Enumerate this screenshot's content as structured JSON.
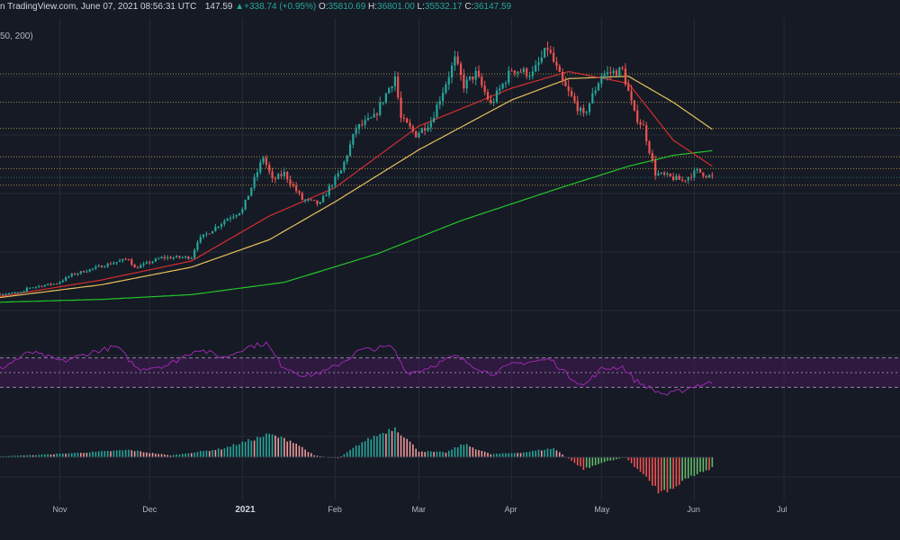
{
  "header": {
    "source": "n TradingView.com, June 07, 2021 08:56:31 UTC",
    "close_snip": "147.59",
    "change": "+338.74 (+0.95%)",
    "open_label": "O:",
    "open": "35810.69",
    "high_label": "H:",
    "high": "36801.00",
    "low_label": "L:",
    "low": "35532.17",
    "close_label": "C:",
    "close": "36147.59",
    "ma_params": "50, 200)"
  },
  "colors": {
    "background": "#161a25",
    "grid": "#262b38",
    "up_candle": "#26a69a",
    "down_candle": "#ef5350",
    "ma_fast": "#d32f2f",
    "ma_50": "#e6c15a",
    "ma_200": "#22c62a",
    "rsi_line": "#9c27b0",
    "rsi_band": "#4a1a5e",
    "level_line": "#c8b04a"
  },
  "chart_data": {
    "type": "candlestick",
    "months": [
      "Nov",
      "Dec",
      "2021",
      "Feb",
      "Mar",
      "Apr",
      "May",
      "Jun",
      "Jul"
    ],
    "price_ylim": [
      9000,
      66000
    ],
    "horizontal_levels": [
      58000,
      52000,
      46500,
      40500,
      38000,
      34500
    ],
    "price_anchors": [
      [
        "2020-10-12",
        11500
      ],
      [
        "2020-10-20",
        11900
      ],
      [
        "2020-10-21",
        12800
      ],
      [
        "2020-10-31",
        13800
      ],
      [
        "2020-11-05",
        15600
      ],
      [
        "2020-11-17",
        17800
      ],
      [
        "2020-11-24",
        19000
      ],
      [
        "2020-11-26",
        17000
      ],
      [
        "2020-12-05",
        19200
      ],
      [
        "2020-12-15",
        19300
      ],
      [
        "2020-12-17",
        22800
      ],
      [
        "2020-12-27",
        27500
      ],
      [
        "2021-01-01",
        29300
      ],
      [
        "2021-01-03",
        32500
      ],
      [
        "2021-01-08",
        40500
      ],
      [
        "2021-01-11",
        35500
      ],
      [
        "2021-01-15",
        37000
      ],
      [
        "2021-01-21",
        31500
      ],
      [
        "2021-01-27",
        30500
      ],
      [
        "2021-01-30",
        34000
      ],
      [
        "2021-02-03",
        37500
      ],
      [
        "2021-02-08",
        46500
      ],
      [
        "2021-02-14",
        48800
      ],
      [
        "2021-02-21",
        57500
      ],
      [
        "2021-02-23",
        48500
      ],
      [
        "2021-02-28",
        45200
      ],
      [
        "2021-03-05",
        48000
      ],
      [
        "2021-03-13",
        61000
      ],
      [
        "2021-03-16",
        55600
      ],
      [
        "2021-03-20",
        58000
      ],
      [
        "2021-03-25",
        51500
      ],
      [
        "2021-04-01",
        59000
      ],
      [
        "2021-04-08",
        58000
      ],
      [
        "2021-04-13",
        63500
      ],
      [
        "2021-04-18",
        56000
      ],
      [
        "2021-04-25",
        49000
      ],
      [
        "2021-05-01",
        57800
      ],
      [
        "2021-05-08",
        58800
      ],
      [
        "2021-05-12",
        49500
      ],
      [
        "2021-05-15",
        46800
      ],
      [
        "2021-05-19",
        37000
      ],
      [
        "2021-05-22",
        36500
      ],
      [
        "2021-05-28",
        35500
      ],
      [
        "2021-06-02",
        37500
      ],
      [
        "2021-06-07",
        36147.59
      ]
    ],
    "ma_fast_anchors": [
      [
        "2020-10-12",
        11000
      ],
      [
        "2020-11-15",
        14500
      ],
      [
        "2020-12-15",
        18500
      ],
      [
        "2021-01-10",
        28000
      ],
      [
        "2021-02-01",
        34000
      ],
      [
        "2021-03-01",
        47000
      ],
      [
        "2021-04-01",
        55000
      ],
      [
        "2021-04-20",
        58500
      ],
      [
        "2021-05-10",
        56000
      ],
      [
        "2021-05-25",
        44000
      ],
      [
        "2021-06-07",
        38500
      ]
    ],
    "ma_50_anchors": [
      [
        "2020-10-12",
        10800
      ],
      [
        "2020-11-15",
        13500
      ],
      [
        "2020-12-15",
        17200
      ],
      [
        "2021-01-10",
        23000
      ],
      [
        "2021-02-01",
        31000
      ],
      [
        "2021-03-01",
        42000
      ],
      [
        "2021-04-01",
        52500
      ],
      [
        "2021-04-20",
        57000
      ],
      [
        "2021-05-10",
        57500
      ],
      [
        "2021-05-25",
        52000
      ],
      [
        "2021-06-07",
        46300
      ]
    ],
    "ma_200_anchors": [
      [
        "2020-10-12",
        9800
      ],
      [
        "2020-11-15",
        10400
      ],
      [
        "2020-12-15",
        11400
      ],
      [
        "2021-01-15",
        14000
      ],
      [
        "2021-02-15",
        20000
      ],
      [
        "2021-03-15",
        27000
      ],
      [
        "2021-04-15",
        33500
      ],
      [
        "2021-05-10",
        38500
      ],
      [
        "2021-05-25",
        40800
      ],
      [
        "2021-06-07",
        41800
      ]
    ],
    "rsi_ylim": [
      0,
      100
    ],
    "rsi_levels": [
      70,
      50,
      30
    ],
    "rsi_anchors": [
      [
        "2020-10-12",
        55
      ],
      [
        "2020-10-22",
        78
      ],
      [
        "2020-11-02",
        65
      ],
      [
        "2020-11-12",
        78
      ],
      [
        "2020-11-20",
        85
      ],
      [
        "2020-11-27",
        55
      ],
      [
        "2020-12-07",
        60
      ],
      [
        "2020-12-17",
        82
      ],
      [
        "2020-12-26",
        70
      ],
      [
        "2021-01-02",
        84
      ],
      [
        "2021-01-09",
        90
      ],
      [
        "2021-01-14",
        60
      ],
      [
        "2021-01-22",
        45
      ],
      [
        "2021-01-29",
        52
      ],
      [
        "2021-02-05",
        68
      ],
      [
        "2021-02-09",
        80
      ],
      [
        "2021-02-20",
        85
      ],
      [
        "2021-02-25",
        50
      ],
      [
        "2021-03-01",
        52
      ],
      [
        "2021-03-13",
        72
      ],
      [
        "2021-03-25",
        48
      ],
      [
        "2021-04-02",
        62
      ],
      [
        "2021-04-14",
        68
      ],
      [
        "2021-04-20",
        46
      ],
      [
        "2021-04-25",
        32
      ],
      [
        "2021-05-01",
        55
      ],
      [
        "2021-05-08",
        58
      ],
      [
        "2021-05-12",
        40
      ],
      [
        "2021-05-19",
        25
      ],
      [
        "2021-05-23",
        20
      ],
      [
        "2021-05-28",
        26
      ],
      [
        "2021-06-02",
        33
      ],
      [
        "2021-06-07",
        36
      ]
    ],
    "macd_ylim": [
      -7000,
      7000
    ],
    "macd_anchors": [
      [
        "2020-10-12",
        150
      ],
      [
        "2020-10-25",
        400
      ],
      [
        "2020-11-10",
        800
      ],
      [
        "2020-11-24",
        1200
      ],
      [
        "2020-12-08",
        300
      ],
      [
        "2020-12-25",
        1400
      ],
      [
        "2021-01-10",
        3800
      ],
      [
        "2021-01-18",
        2600
      ],
      [
        "2021-01-25",
        300
      ],
      [
        "2021-02-02",
        -200
      ],
      [
        "2021-02-10",
        2500
      ],
      [
        "2021-02-21",
        5000
      ],
      [
        "2021-03-01",
        1000
      ],
      [
        "2021-03-10",
        800
      ],
      [
        "2021-03-16",
        2200
      ],
      [
        "2021-03-25",
        500
      ],
      [
        "2021-04-05",
        800
      ],
      [
        "2021-04-15",
        1500
      ],
      [
        "2021-04-25",
        -2000
      ],
      [
        "2021-05-02",
        -800
      ],
      [
        "2021-05-09",
        0
      ],
      [
        "2021-05-14",
        -2500
      ],
      [
        "2021-05-21",
        -6000
      ],
      [
        "2021-05-28",
        -4000
      ],
      [
        "2021-06-03",
        -2500
      ],
      [
        "2021-06-07",
        -1800
      ]
    ]
  }
}
